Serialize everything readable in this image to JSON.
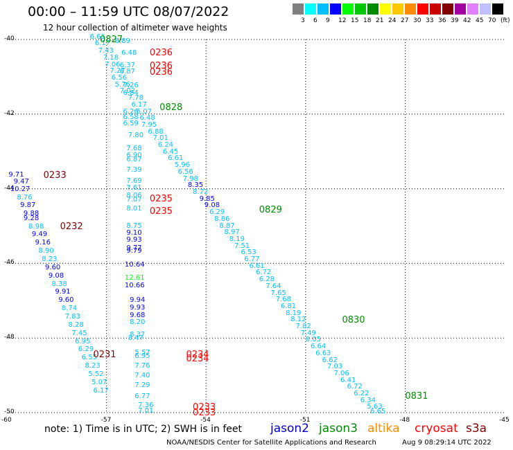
{
  "header": {
    "title": "00:00 – 11:59 UTC 08/07/2022",
    "subtitle": "12 hour collection of altimeter wave heights"
  },
  "colorbar": {
    "colors": [
      "#808080",
      "#00ffff",
      "#00bfff",
      "#0000ff",
      "#00ff00",
      "#00c800",
      "#008c00",
      "#ffff00",
      "#ffc800",
      "#ff8c00",
      "#ff0000",
      "#c80000",
      "#800000",
      "#a000a0",
      "#e080ff",
      "#c0c0ff",
      "#000000"
    ],
    "labels": [
      "3",
      "6",
      "9",
      "12",
      "15",
      "18",
      "21",
      "24",
      "27",
      "30",
      "33",
      "36",
      "39",
      "42",
      "45",
      "70",
      "(ft)"
    ]
  },
  "axes": {
    "y_ticks": [
      "-40",
      "-42",
      "-44",
      "-46",
      "-48",
      "-50"
    ],
    "x_ticks": [
      "-60",
      "-57",
      "-54",
      "-51",
      "-48",
      "-45"
    ]
  },
  "footer": {
    "note": "note:  1) Time is in UTC; 2) SWH is in feet",
    "satellites": [
      {
        "name": "jason2",
        "color": "#0000cc"
      },
      {
        "name": "jason3",
        "color": "#008c00"
      },
      {
        "name": "altika",
        "color": "#ff8c00"
      },
      {
        "name": "cryosat",
        "color": "#ff0000"
      },
      {
        "name": "s3a",
        "color": "#800000"
      }
    ],
    "credit": "NOAA/NESDIS Center for Satellite Applications and Research",
    "stamp": "Aug  9 08:29:14 UTC 2022"
  },
  "chart_data": {
    "type": "scatter",
    "xlim": [
      -60,
      -45
    ],
    "ylim": [
      -50,
      -40
    ],
    "xlabel": "",
    "ylabel": "",
    "grid": true,
    "time_labels": [
      {
        "text": "0827",
        "lon": -57.2,
        "lat": -40.0,
        "color": "#008c00"
      },
      {
        "text": "0236",
        "lon": -55.7,
        "lat": -40.35,
        "color": "#ff0000"
      },
      {
        "text": "0236",
        "lon": -55.7,
        "lat": -40.7,
        "color": "#ff0000"
      },
      {
        "text": "0236",
        "lon": -55.7,
        "lat": -40.88,
        "color": "#ff0000"
      },
      {
        "text": "0828",
        "lon": -55.4,
        "lat": -41.82,
        "color": "#008c00"
      },
      {
        "text": "0233",
        "lon": -58.9,
        "lat": -43.63,
        "color": "#800000"
      },
      {
        "text": "0235",
        "lon": -55.7,
        "lat": -44.27,
        "color": "#ff0000"
      },
      {
        "text": "0235",
        "lon": -55.7,
        "lat": -44.6,
        "color": "#ff0000"
      },
      {
        "text": "0829",
        "lon": -52.4,
        "lat": -44.56,
        "color": "#008c00"
      },
      {
        "text": "0232",
        "lon": -58.4,
        "lat": -45.0,
        "color": "#800000"
      },
      {
        "text": "0830",
        "lon": -49.9,
        "lat": -47.52,
        "color": "#008c00"
      },
      {
        "text": "0231",
        "lon": -57.4,
        "lat": -48.45,
        "color": "#800000"
      },
      {
        "text": "0234",
        "lon": -54.6,
        "lat": -48.45,
        "color": "#ff0000"
      },
      {
        "text": "0234",
        "lon": -54.6,
        "lat": -48.55,
        "color": "#ff0000"
      },
      {
        "text": "0831",
        "lon": -48.0,
        "lat": -49.55,
        "color": "#008c00"
      },
      {
        "text": "0233",
        "lon": -54.4,
        "lat": -49.85,
        "color": "#ff0000"
      },
      {
        "text": "0233",
        "lon": -54.4,
        "lat": -50.0,
        "color": "#ff0000"
      }
    ],
    "swh_labels": [
      {
        "text": "6.61",
        "lon": -57.5,
        "lat": -39.95,
        "color": "#00bfff"
      },
      {
        "text": "6.17",
        "lon": -57.35,
        "lat": -40.12,
        "color": "#00bfff"
      },
      {
        "text": "7.43",
        "lon": -57.25,
        "lat": -40.32,
        "color": "#00bfff"
      },
      {
        "text": "7.18",
        "lon": -57.1,
        "lat": -40.5,
        "color": "#00bfff"
      },
      {
        "text": "7.06",
        "lon": -57.05,
        "lat": -40.68,
        "color": "#00bfff"
      },
      {
        "text": "7.27",
        "lon": -56.9,
        "lat": -40.86,
        "color": "#00bfff"
      },
      {
        "text": "6.56",
        "lon": -56.85,
        "lat": -41.04,
        "color": "#00bfff"
      },
      {
        "text": "5.76",
        "lon": -56.75,
        "lat": -41.22,
        "color": "#00bfff"
      },
      {
        "text": "7.02",
        "lon": -56.6,
        "lat": -41.4,
        "color": "#00bfff"
      },
      {
        "text": "6.89",
        "lon": -56.75,
        "lat": -40.06,
        "color": "#00bfff"
      },
      {
        "text": "6.48",
        "lon": -56.55,
        "lat": -40.37,
        "color": "#00bfff"
      },
      {
        "text": "6.37",
        "lon": -56.6,
        "lat": -40.7,
        "color": "#00bfff"
      },
      {
        "text": "6.87",
        "lon": -56.6,
        "lat": -40.88,
        "color": "#00bfff"
      },
      {
        "text": "7.26",
        "lon": -56.5,
        "lat": -41.24,
        "color": "#00bfff"
      },
      {
        "text": "6.84",
        "lon": -56.5,
        "lat": -41.45,
        "color": "#00bfff"
      },
      {
        "text": "7.78",
        "lon": -56.35,
        "lat": -41.58,
        "color": "#00bfff"
      },
      {
        "text": "6.17",
        "lon": -56.25,
        "lat": -41.76,
        "color": "#00bfff"
      },
      {
        "text": "6.07",
        "lon": -56.1,
        "lat": -41.94,
        "color": "#00bfff"
      },
      {
        "text": "6.26",
        "lon": -56.5,
        "lat": -41.94,
        "color": "#00bfff"
      },
      {
        "text": "6.58",
        "lon": -56.5,
        "lat": -42.1,
        "color": "#00bfff"
      },
      {
        "text": "6.48",
        "lon": -56.0,
        "lat": -42.12,
        "color": "#00bfff"
      },
      {
        "text": "6.59",
        "lon": -56.5,
        "lat": -42.27,
        "color": "#00bfff"
      },
      {
        "text": "7.95",
        "lon": -55.95,
        "lat": -42.3,
        "color": "#00bfff"
      },
      {
        "text": "6.88",
        "lon": -55.75,
        "lat": -42.48,
        "color": "#00bfff"
      },
      {
        "text": "7.80",
        "lon": -56.35,
        "lat": -42.58,
        "color": "#00bfff"
      },
      {
        "text": "7.01",
        "lon": -55.6,
        "lat": -42.66,
        "color": "#00bfff"
      },
      {
        "text": "7.68",
        "lon": -56.4,
        "lat": -42.94,
        "color": "#00bfff"
      },
      {
        "text": "6.24",
        "lon": -55.45,
        "lat": -42.84,
        "color": "#00bfff"
      },
      {
        "text": "6.90",
        "lon": -56.4,
        "lat": -43.12,
        "color": "#00bfff"
      },
      {
        "text": "6.45",
        "lon": -55.3,
        "lat": -43.02,
        "color": "#00bfff"
      },
      {
        "text": "6.87",
        "lon": -56.4,
        "lat": -43.22,
        "color": "#00bfff"
      },
      {
        "text": "6.61",
        "lon": -55.15,
        "lat": -43.2,
        "color": "#00bfff"
      },
      {
        "text": "5.96",
        "lon": -54.95,
        "lat": -43.38,
        "color": "#00bfff"
      },
      {
        "text": "7.39",
        "lon": -56.4,
        "lat": -43.5,
        "color": "#00bfff"
      },
      {
        "text": "6.56",
        "lon": -54.85,
        "lat": -43.56,
        "color": "#00bfff"
      },
      {
        "text": "7.98",
        "lon": -54.7,
        "lat": -43.74,
        "color": "#00bfff"
      },
      {
        "text": "7.69",
        "lon": -56.4,
        "lat": -43.8,
        "color": "#00bfff"
      },
      {
        "text": "8.35",
        "lon": -54.55,
        "lat": -43.92,
        "color": "#0000ff"
      },
      {
        "text": "7.61",
        "lon": -56.4,
        "lat": -43.98,
        "color": "#00bfff"
      },
      {
        "text": "8.72",
        "lon": -54.4,
        "lat": -44.1,
        "color": "#00bfff"
      },
      {
        "text": "8.06",
        "lon": -56.4,
        "lat": -44.2,
        "color": "#00bfff"
      },
      {
        "text": "7.07",
        "lon": -56.4,
        "lat": -44.3,
        "color": "#00bfff"
      },
      {
        "text": "9.85",
        "lon": -54.2,
        "lat": -44.28,
        "color": "#0000ff"
      },
      {
        "text": "9.08",
        "lon": -54.05,
        "lat": -44.46,
        "color": "#0000ff"
      },
      {
        "text": "8.01",
        "lon": -56.4,
        "lat": -44.55,
        "color": "#00bfff"
      },
      {
        "text": "6.29",
        "lon": -53.9,
        "lat": -44.64,
        "color": "#00bfff"
      },
      {
        "text": "8.86",
        "lon": -53.75,
        "lat": -44.82,
        "color": "#00bfff"
      },
      {
        "text": "8.75",
        "lon": -56.4,
        "lat": -45.0,
        "color": "#00bfff"
      },
      {
        "text": "8.87",
        "lon": -53.6,
        "lat": -45.0,
        "color": "#00bfff"
      },
      {
        "text": "9.10",
        "lon": -56.4,
        "lat": -45.2,
        "color": "#0000ff"
      },
      {
        "text": "8.97",
        "lon": -53.45,
        "lat": -45.18,
        "color": "#00bfff"
      },
      {
        "text": "9.93",
        "lon": -56.4,
        "lat": -45.38,
        "color": "#0000ff"
      },
      {
        "text": "8.19",
        "lon": -53.3,
        "lat": -45.36,
        "color": "#00bfff"
      },
      {
        "text": "7.51",
        "lon": -53.15,
        "lat": -45.54,
        "color": "#00bfff"
      },
      {
        "text": "9.77",
        "lon": -56.4,
        "lat": -45.6,
        "color": "#0000ff"
      },
      {
        "text": "9.79",
        "lon": -56.4,
        "lat": -45.67,
        "color": "#0000ff"
      },
      {
        "text": "6.53",
        "lon": -52.95,
        "lat": -45.72,
        "color": "#00bfff"
      },
      {
        "text": "6.77",
        "lon": -52.85,
        "lat": -45.9,
        "color": "#00bfff"
      },
      {
        "text": "10.64",
        "lon": -56.45,
        "lat": -46.04,
        "color": "#0000ff"
      },
      {
        "text": "6.61",
        "lon": -52.7,
        "lat": -46.08,
        "color": "#00bfff"
      },
      {
        "text": "6.72",
        "lon": -52.5,
        "lat": -46.26,
        "color": "#00bfff"
      },
      {
        "text": "12.61",
        "lon": -56.45,
        "lat": -46.4,
        "color": "#00ff00"
      },
      {
        "text": "10.66",
        "lon": -56.45,
        "lat": -46.6,
        "color": "#0000ff"
      },
      {
        "text": "6.28",
        "lon": -52.4,
        "lat": -46.44,
        "color": "#00bfff"
      },
      {
        "text": "7.64",
        "lon": -52.2,
        "lat": -46.62,
        "color": "#00bfff"
      },
      {
        "text": "7.65",
        "lon": -52.05,
        "lat": -46.8,
        "color": "#00bfff"
      },
      {
        "text": "9.94",
        "lon": -56.3,
        "lat": -47.0,
        "color": "#0000ff"
      },
      {
        "text": "7.68",
        "lon": -51.9,
        "lat": -46.98,
        "color": "#00bfff"
      },
      {
        "text": "9.93",
        "lon": -56.3,
        "lat": -47.2,
        "color": "#0000ff"
      },
      {
        "text": "6.81",
        "lon": -51.75,
        "lat": -47.16,
        "color": "#00bfff"
      },
      {
        "text": "9.68",
        "lon": -56.3,
        "lat": -47.4,
        "color": "#0000ff"
      },
      {
        "text": "8.19",
        "lon": -51.6,
        "lat": -47.34,
        "color": "#00bfff"
      },
      {
        "text": "8.12",
        "lon": -51.45,
        "lat": -47.52,
        "color": "#00bfff"
      },
      {
        "text": "8.20",
        "lon": -56.3,
        "lat": -47.58,
        "color": "#00bfff"
      },
      {
        "text": "7.82",
        "lon": -51.3,
        "lat": -47.7,
        "color": "#00bfff"
      },
      {
        "text": "7.49",
        "lon": -51.15,
        "lat": -47.88,
        "color": "#00bfff"
      },
      {
        "text": "8.37",
        "lon": -56.3,
        "lat": -47.92,
        "color": "#00bfff"
      },
      {
        "text": "8.47",
        "lon": -56.35,
        "lat": -48.02,
        "color": "#00bfff"
      },
      {
        "text": "8.05",
        "lon": -51.0,
        "lat": -48.06,
        "color": "#00bfff"
      },
      {
        "text": "6.64",
        "lon": -50.85,
        "lat": -48.24,
        "color": "#00bfff"
      },
      {
        "text": "5.57",
        "lon": -56.15,
        "lat": -48.4,
        "color": "#00bfff"
      },
      {
        "text": "6.95",
        "lon": -56.15,
        "lat": -48.5,
        "color": "#00bfff"
      },
      {
        "text": "6.63",
        "lon": -50.7,
        "lat": -48.42,
        "color": "#00bfff"
      },
      {
        "text": "6.62",
        "lon": -50.5,
        "lat": -48.6,
        "color": "#00bfff"
      },
      {
        "text": "7.76",
        "lon": -56.15,
        "lat": -48.75,
        "color": "#00bfff"
      },
      {
        "text": "7.03",
        "lon": -50.35,
        "lat": -48.78,
        "color": "#00bfff"
      },
      {
        "text": "7.40",
        "lon": -56.15,
        "lat": -49.02,
        "color": "#00bfff"
      },
      {
        "text": "7.06",
        "lon": -50.15,
        "lat": -48.96,
        "color": "#00bfff"
      },
      {
        "text": "6.41",
        "lon": -49.95,
        "lat": -49.14,
        "color": "#00bfff"
      },
      {
        "text": "7.29",
        "lon": -56.15,
        "lat": -49.27,
        "color": "#00bfff"
      },
      {
        "text": "6.72",
        "lon": -49.75,
        "lat": -49.32,
        "color": "#00bfff"
      },
      {
        "text": "6.22",
        "lon": -49.55,
        "lat": -49.5,
        "color": "#00bfff"
      },
      {
        "text": "6.77",
        "lon": -56.15,
        "lat": -49.57,
        "color": "#00bfff"
      },
      {
        "text": "6.34",
        "lon": -49.35,
        "lat": -49.68,
        "color": "#00bfff"
      },
      {
        "text": "7.36",
        "lon": -56.05,
        "lat": -49.82,
        "color": "#00bfff"
      },
      {
        "text": "5.63",
        "lon": -49.15,
        "lat": -49.86,
        "color": "#00bfff"
      },
      {
        "text": "7.01",
        "lon": -56.05,
        "lat": -49.96,
        "color": "#00bfff"
      },
      {
        "text": "6.65",
        "lon": -49.05,
        "lat": -49.99,
        "color": "#00bfff"
      },
      {
        "text": "9.71",
        "lon": -59.95,
        "lat": -43.63,
        "color": "#0000ff"
      },
      {
        "text": "9.47",
        "lon": -59.8,
        "lat": -43.82,
        "color": "#0000ff"
      },
      {
        "text": "10.27",
        "lon": -59.9,
        "lat": -44.02,
        "color": "#0000ff"
      },
      {
        "text": "8.76",
        "lon": -59.7,
        "lat": -44.24,
        "color": "#00bfff"
      },
      {
        "text": "9.87",
        "lon": -59.6,
        "lat": -44.46,
        "color": "#0000ff"
      },
      {
        "text": "9.88",
        "lon": -59.5,
        "lat": -44.68,
        "color": "#0000ff"
      },
      {
        "text": "9.28",
        "lon": -59.5,
        "lat": -44.8,
        "color": "#0000ff"
      },
      {
        "text": "8.98",
        "lon": -59.35,
        "lat": -45.02,
        "color": "#00bfff"
      },
      {
        "text": "9.49",
        "lon": -59.25,
        "lat": -45.24,
        "color": "#0000ff"
      },
      {
        "text": "9.16",
        "lon": -59.15,
        "lat": -45.46,
        "color": "#0000ff"
      },
      {
        "text": "8.90",
        "lon": -59.05,
        "lat": -45.68,
        "color": "#00bfff"
      },
      {
        "text": "8.23",
        "lon": -58.95,
        "lat": -45.9,
        "color": "#00bfff"
      },
      {
        "text": "9.60",
        "lon": -58.85,
        "lat": -46.12,
        "color": "#0000ff"
      },
      {
        "text": "9.08",
        "lon": -58.75,
        "lat": -46.34,
        "color": "#0000ff"
      },
      {
        "text": "8.38",
        "lon": -58.65,
        "lat": -46.56,
        "color": "#00bfff"
      },
      {
        "text": "9.91",
        "lon": -58.55,
        "lat": -46.78,
        "color": "#0000ff"
      },
      {
        "text": "9.60",
        "lon": -58.45,
        "lat": -47.0,
        "color": "#0000ff"
      },
      {
        "text": "8.74",
        "lon": -58.35,
        "lat": -47.22,
        "color": "#00bfff"
      },
      {
        "text": "7.83",
        "lon": -58.25,
        "lat": -47.44,
        "color": "#00bfff"
      },
      {
        "text": "8.28",
        "lon": -58.15,
        "lat": -47.66,
        "color": "#00bfff"
      },
      {
        "text": "7.45",
        "lon": -58.05,
        "lat": -47.88,
        "color": "#00bfff"
      },
      {
        "text": "6.95",
        "lon": -57.95,
        "lat": -48.1,
        "color": "#00bfff"
      },
      {
        "text": "6.29",
        "lon": -57.85,
        "lat": -48.32,
        "color": "#00bfff"
      },
      {
        "text": "6.55",
        "lon": -57.75,
        "lat": -48.54,
        "color": "#00bfff"
      },
      {
        "text": "8.23",
        "lon": -57.65,
        "lat": -48.76,
        "color": "#00bfff"
      },
      {
        "text": "5.52",
        "lon": -57.55,
        "lat": -48.98,
        "color": "#00bfff"
      },
      {
        "text": "5.07",
        "lon": -57.45,
        "lat": -49.2,
        "color": "#00bfff"
      },
      {
        "text": "6.17",
        "lon": -57.4,
        "lat": -49.42,
        "color": "#00bfff"
      }
    ]
  }
}
